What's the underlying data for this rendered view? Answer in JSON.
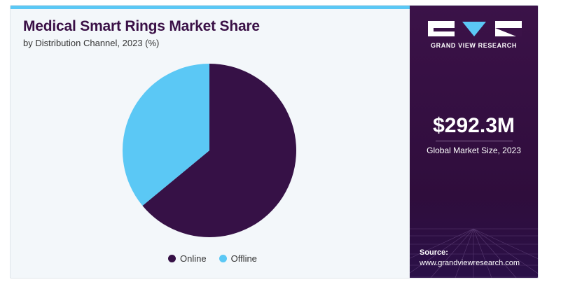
{
  "title": "Medical Smart Rings Market Share",
  "subtitle": "by Distribution Channel, 2023 (%)",
  "colors": {
    "accent_bar": "#5bc8f5",
    "online": "#361146",
    "offline": "#5bc8f5",
    "side_bg": "#3b1248"
  },
  "chart_data": {
    "type": "pie",
    "title": "Medical Smart Rings Market Share",
    "subtitle": "by Distribution Channel, 2023 (%)",
    "labels": [
      "Online",
      "Offline"
    ],
    "values": [
      64,
      36
    ],
    "colors": [
      "#361146",
      "#5bc8f5"
    ],
    "legend_position": "bottom"
  },
  "side": {
    "brand": "GRAND VIEW RESEARCH",
    "market_size": "$292.3M",
    "market_size_label": "Global Market Size, 2023",
    "source_label": "Source:",
    "source_url": "www.grandviewresearch.com"
  }
}
